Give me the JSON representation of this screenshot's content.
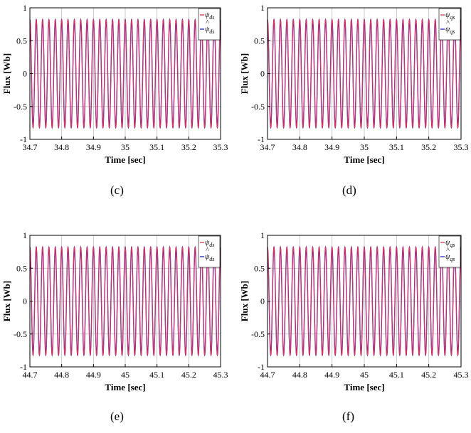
{
  "chart_data": [
    {
      "type": "line",
      "caption": "(c)",
      "xlabel": "Time [sec]",
      "ylabel": "Flux [Wb]",
      "xlim": [
        34.7,
        35.3
      ],
      "ylim": [
        -1,
        1
      ],
      "xticks": [
        "34.7",
        "34.8",
        "34.9",
        "35",
        "35.1",
        "35.2",
        "35.3"
      ],
      "yticks": [
        "-1",
        "-0.5",
        "0",
        "0.5",
        "1"
      ],
      "grid": true,
      "legend_position": "top-right",
      "amplitude": 0.82,
      "frequency_hz": 50,
      "series": [
        {
          "name": "ψds",
          "base": "ψ",
          "sub": "ds",
          "hat": false,
          "color": "#e8324f"
        },
        {
          "name": "ψ̂ds",
          "base": "ψ",
          "sub": "ds",
          "hat": true,
          "color": "#1f1fd6"
        }
      ]
    },
    {
      "type": "line",
      "caption": "(d)",
      "xlabel": "Time [sec]",
      "ylabel": "Flux [Wb]",
      "xlim": [
        34.7,
        35.3
      ],
      "ylim": [
        -1,
        1
      ],
      "xticks": [
        "34.7",
        "34.8",
        "34.9",
        "35",
        "35.1",
        "35.2",
        "35.3"
      ],
      "yticks": [
        "-1",
        "-0.5",
        "0",
        "0.5",
        "1"
      ],
      "grid": true,
      "legend_position": "top-right",
      "amplitude": 0.82,
      "frequency_hz": 50,
      "series": [
        {
          "name": "ψqs",
          "base": "ψ",
          "sub": "qs",
          "hat": false,
          "color": "#e8324f"
        },
        {
          "name": "ψ̂qs",
          "base": "ψ",
          "sub": "qs",
          "hat": true,
          "color": "#1f1fd6"
        }
      ]
    },
    {
      "type": "line",
      "caption": "(e)",
      "xlabel": "Time [sec]",
      "ylabel": "Flux [Wb]",
      "xlim": [
        44.7,
        45.3
      ],
      "ylim": [
        -1,
        1
      ],
      "xticks": [
        "44.7",
        "44.8",
        "44.9",
        "45",
        "45.1",
        "45.2",
        "45.3"
      ],
      "yticks": [
        "-1",
        "-0.5",
        "0",
        "0.5",
        "1"
      ],
      "grid": true,
      "legend_position": "top-right",
      "amplitude": 0.82,
      "frequency_hz": 50,
      "series": [
        {
          "name": "ψds",
          "base": "ψ",
          "sub": "ds",
          "hat": false,
          "color": "#e8324f"
        },
        {
          "name": "ψ̂ds",
          "base": "ψ",
          "sub": "ds",
          "hat": true,
          "color": "#1f1fd6"
        }
      ]
    },
    {
      "type": "line",
      "caption": "(f)",
      "xlabel": "Time [sec]",
      "ylabel": "Flux [Wb]",
      "xlim": [
        44.7,
        45.3
      ],
      "ylim": [
        -1,
        1
      ],
      "xticks": [
        "44.7",
        "44.8",
        "44.9",
        "45",
        "45.1",
        "45.2",
        "45.3"
      ],
      "yticks": [
        "-1",
        "-0.5",
        "0",
        "0.5",
        "1"
      ],
      "grid": true,
      "legend_position": "top-right",
      "amplitude": 0.82,
      "frequency_hz": 50,
      "series": [
        {
          "name": "ψqs",
          "base": "ψ",
          "sub": "qs",
          "hat": false,
          "color": "#e8324f"
        },
        {
          "name": "ψ̂qs",
          "base": "ψ",
          "sub": "qs",
          "hat": true,
          "color": "#1f1fd6"
        }
      ]
    }
  ]
}
